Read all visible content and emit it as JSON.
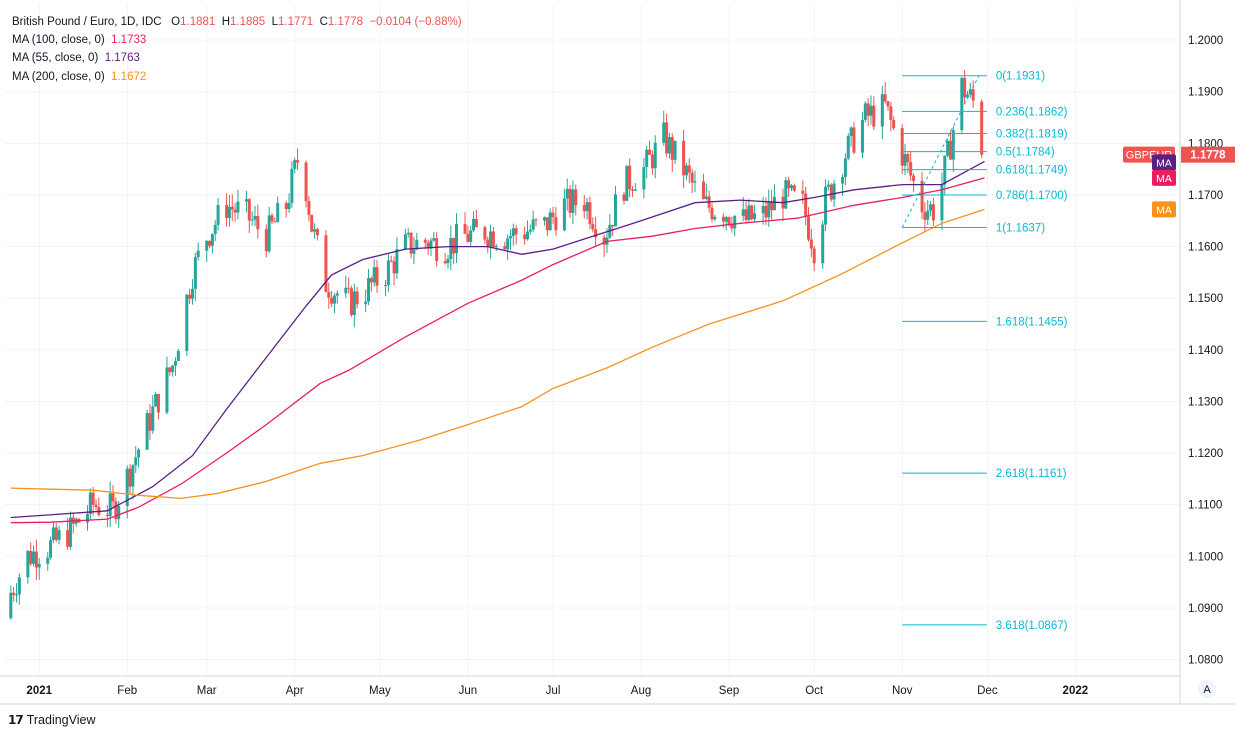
{
  "legend": {
    "title": "British Pound / Euro, 1D, IDC",
    "open_label": "O",
    "open": "1.1881",
    "high_label": "H",
    "high": "1.1885",
    "low_label": "L",
    "low": "1.1771",
    "close_label": "C",
    "close": "1.1778",
    "change": "−0.0104 (−0.88%)",
    "ma100_label": "MA (100, close, 0)",
    "ma100_value": "1.1733",
    "ma55_label": "MA (55, close, 0)",
    "ma55_value": "1.1763",
    "ma200_label": "MA (200, close, 0)",
    "ma200_value": "1.1672"
  },
  "brand": "TradingView",
  "colors": {
    "up": "#26a69a",
    "down": "#ef5350",
    "ma100": "#e91e63",
    "ma55": "#5b1e84",
    "ma200": "#f7931a",
    "fib": "#00bcd4",
    "grid": "#f0f3fa",
    "text": "#131722"
  },
  "chart_data": {
    "type": "candlestick",
    "symbol": "GBPEUR",
    "last_price": "1.1778",
    "last_price_value": 1.1778,
    "x_tick_labels": [
      "2021",
      "Feb",
      "Mar",
      "Apr",
      "May",
      "Jun",
      "Jul",
      "Aug",
      "Sep",
      "Oct",
      "Nov",
      "Dec",
      "2022"
    ],
    "y_tick_labels": [
      "1.2000",
      "1.1900",
      "1.1800",
      "1.1700",
      "1.1600",
      "1.1500",
      "1.1400",
      "1.1300",
      "1.1200",
      "1.1100",
      "1.1000",
      "1.0900",
      "1.0800"
    ],
    "ylim": [
      1.0768,
      1.2068
    ],
    "ma_badges": [
      "MA",
      "MA",
      "MA"
    ],
    "axis_button": "A",
    "moving_averages": [
      {
        "name": "MA (55, close, 0)",
        "color": "#5b1e84",
        "points": [
          [
            "2020-12-22",
            1.1075
          ],
          [
            "2021-01-04",
            1.108
          ],
          [
            "2021-01-25",
            1.1088
          ],
          [
            "2021-02-10",
            1.1135
          ],
          [
            "2021-02-24",
            1.1195
          ],
          [
            "2021-03-08",
            1.1285
          ],
          [
            "2021-03-22",
            1.1385
          ],
          [
            "2021-04-05",
            1.1485
          ],
          [
            "2021-04-14",
            1.1545
          ],
          [
            "2021-04-25",
            1.1575
          ],
          [
            "2021-05-10",
            1.1595
          ],
          [
            "2021-05-25",
            1.16
          ],
          [
            "2021-06-08",
            1.16
          ],
          [
            "2021-06-20",
            1.1585
          ],
          [
            "2021-07-01",
            1.1595
          ],
          [
            "2021-07-15",
            1.162
          ],
          [
            "2021-08-01",
            1.165
          ],
          [
            "2021-08-20",
            1.1685
          ],
          [
            "2021-09-05",
            1.169
          ],
          [
            "2021-09-20",
            1.1685
          ],
          [
            "2021-10-01",
            1.1695
          ],
          [
            "2021-10-15",
            1.171
          ],
          [
            "2021-11-01",
            1.172
          ],
          [
            "2021-11-15",
            1.172
          ],
          [
            "2021-11-30",
            1.1765
          ]
        ]
      },
      {
        "name": "MA (100, close, 0)",
        "color": "#e91e63",
        "points": [
          [
            "2020-12-22",
            1.1065
          ],
          [
            "2021-01-05",
            1.1066
          ],
          [
            "2021-01-25",
            1.1072
          ],
          [
            "2021-02-05",
            1.1095
          ],
          [
            "2021-02-20",
            1.114
          ],
          [
            "2021-03-08",
            1.12
          ],
          [
            "2021-03-22",
            1.1255
          ],
          [
            "2021-04-10",
            1.1335
          ],
          [
            "2021-04-20",
            1.136
          ],
          [
            "2021-05-10",
            1.1425
          ],
          [
            "2021-06-01",
            1.149
          ],
          [
            "2021-06-20",
            1.1535
          ],
          [
            "2021-07-01",
            1.1565
          ],
          [
            "2021-07-20",
            1.161
          ],
          [
            "2021-08-05",
            1.162
          ],
          [
            "2021-08-20",
            1.1635
          ],
          [
            "2021-09-05",
            1.1645
          ],
          [
            "2021-09-25",
            1.1655
          ],
          [
            "2021-10-15",
            1.168
          ],
          [
            "2021-11-01",
            1.1695
          ],
          [
            "2021-11-15",
            1.171
          ],
          [
            "2021-11-30",
            1.1733
          ]
        ]
      },
      {
        "name": "MA (200, close, 0)",
        "color": "#f7931a",
        "points": [
          [
            "2020-12-22",
            1.1132
          ],
          [
            "2021-01-05",
            1.113
          ],
          [
            "2021-01-20",
            1.1128
          ],
          [
            "2021-02-05",
            1.1118
          ],
          [
            "2021-02-20",
            1.1112
          ],
          [
            "2021-03-05",
            1.1122
          ],
          [
            "2021-03-22",
            1.1145
          ],
          [
            "2021-04-10",
            1.118
          ],
          [
            "2021-04-25",
            1.1195
          ],
          [
            "2021-05-15",
            1.1225
          ],
          [
            "2021-06-01",
            1.1255
          ],
          [
            "2021-06-20",
            1.129
          ],
          [
            "2021-07-01",
            1.1325
          ],
          [
            "2021-07-20",
            1.1365
          ],
          [
            "2021-08-05",
            1.1405
          ],
          [
            "2021-08-25",
            1.145
          ],
          [
            "2021-09-20",
            1.1495
          ],
          [
            "2021-10-10",
            1.1545
          ],
          [
            "2021-11-01",
            1.1607
          ],
          [
            "2021-11-15",
            1.1645
          ],
          [
            "2021-11-30",
            1.1672
          ]
        ]
      }
    ],
    "fibonacci": {
      "start": "2021-11-01",
      "end": "2021-11-28",
      "levels": [
        {
          "label": "0(1.1931)",
          "price": 1.1931
        },
        {
          "label": "0.236(1.1862)",
          "price": 1.1862
        },
        {
          "label": "0.382(1.1819)",
          "price": 1.1819
        },
        {
          "label": "0.5(1.1784)",
          "price": 1.1784
        },
        {
          "label": "0.618(1.1749)",
          "price": 1.1749
        },
        {
          "label": "0.786(1.1700)",
          "price": 1.17
        },
        {
          "label": "1(1.1637)",
          "price": 1.1637
        },
        {
          "label": "1.618(1.1455)",
          "price": 1.1455
        },
        {
          "label": "2.618(1.1161)",
          "price": 1.1161
        },
        {
          "label": "3.618(1.0867)",
          "price": 1.0867
        }
      ]
    },
    "close_series": [
      [
        "2020-12-22",
        1.093
      ],
      [
        "2020-12-28",
        1.1
      ],
      [
        "2021-01-05",
        1.102
      ],
      [
        "2021-01-12",
        1.105
      ],
      [
        "2021-01-20",
        1.11
      ],
      [
        "2021-01-27",
        1.109
      ],
      [
        "2021-02-03",
        1.118
      ],
      [
        "2021-02-10",
        1.128
      ],
      [
        "2021-02-17",
        1.137
      ],
      [
        "2021-02-24",
        1.155
      ],
      [
        "2021-03-01",
        1.162
      ],
      [
        "2021-03-08",
        1.168
      ],
      [
        "2021-03-15",
        1.166
      ],
      [
        "2021-03-22",
        1.162
      ],
      [
        "2021-03-29",
        1.168
      ],
      [
        "2021-04-03",
        1.179
      ],
      [
        "2021-04-07",
        1.164
      ],
      [
        "2021-04-12",
        1.153
      ],
      [
        "2021-04-20",
        1.149
      ],
      [
        "2021-04-27",
        1.152
      ],
      [
        "2021-05-03",
        1.155
      ],
      [
        "2021-05-10",
        1.16
      ],
      [
        "2021-05-17",
        1.161
      ],
      [
        "2021-05-24",
        1.16
      ],
      [
        "2021-05-31",
        1.162
      ],
      [
        "2021-06-07",
        1.163
      ],
      [
        "2021-06-14",
        1.162
      ],
      [
        "2021-06-21",
        1.163
      ],
      [
        "2021-06-28",
        1.164
      ],
      [
        "2021-07-05",
        1.168
      ],
      [
        "2021-07-12",
        1.169
      ],
      [
        "2021-07-19",
        1.162
      ],
      [
        "2021-07-26",
        1.172
      ],
      [
        "2021-08-02",
        1.175
      ],
      [
        "2021-08-09",
        1.181
      ],
      [
        "2021-08-16",
        1.175
      ],
      [
        "2021-08-23",
        1.168
      ],
      [
        "2021-08-30",
        1.167
      ],
      [
        "2021-09-06",
        1.165
      ],
      [
        "2021-09-13",
        1.166
      ],
      [
        "2021-09-20",
        1.17
      ],
      [
        "2021-09-27",
        1.168
      ],
      [
        "2021-10-01",
        1.16
      ],
      [
        "2021-10-05",
        1.169
      ],
      [
        "2021-10-12",
        1.178
      ],
      [
        "2021-10-19",
        1.185
      ],
      [
        "2021-10-26",
        1.187
      ],
      [
        "2021-11-01",
        1.178
      ],
      [
        "2021-11-08",
        1.168
      ],
      [
        "2021-11-13",
        1.167
      ],
      [
        "2021-11-18",
        1.18
      ],
      [
        "2021-11-22",
        1.191
      ],
      [
        "2021-11-26",
        1.188
      ],
      [
        "2021-11-29",
        1.1778
      ]
    ]
  }
}
